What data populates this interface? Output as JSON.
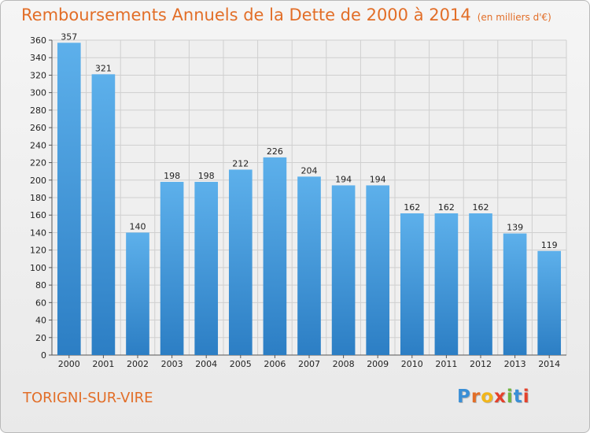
{
  "title": "Remboursements Annuels de la Dette de 2000 à 2014",
  "subtitle": "(en milliers d'€)",
  "city": "TORIGNI-SUR-VIRE",
  "logo": {
    "letters": [
      "P",
      "r",
      "o",
      "x",
      "i",
      "t",
      "i"
    ],
    "colors": [
      "#3a8fd6",
      "#e26e28",
      "#f2b619",
      "#e4412b",
      "#6fb43f",
      "#3a8fd6",
      "#e4412b"
    ]
  },
  "colors": {
    "accent": "#e26e28",
    "bar_top": "#5db0eb",
    "bar_bottom": "#2c7ec4",
    "grid": "#cfcfcf",
    "axis_text": "#222222"
  },
  "chart_data": {
    "type": "bar",
    "title": "Remboursements Annuels de la Dette de 2000 à 2014",
    "ylabel": "en milliers d'€",
    "xlabel": "",
    "categories": [
      "2000",
      "2001",
      "2002",
      "2003",
      "2004",
      "2005",
      "2006",
      "2007",
      "2008",
      "2009",
      "2010",
      "2011",
      "2012",
      "2013",
      "2014"
    ],
    "values": [
      357,
      321,
      140,
      198,
      198,
      212,
      226,
      204,
      194,
      194,
      162,
      162,
      162,
      139,
      119
    ],
    "ylim": [
      0,
      360
    ],
    "yticks": [
      0,
      20,
      40,
      60,
      80,
      100,
      120,
      140,
      160,
      180,
      200,
      220,
      240,
      260,
      280,
      300,
      320,
      340,
      360
    ],
    "grid": true
  }
}
